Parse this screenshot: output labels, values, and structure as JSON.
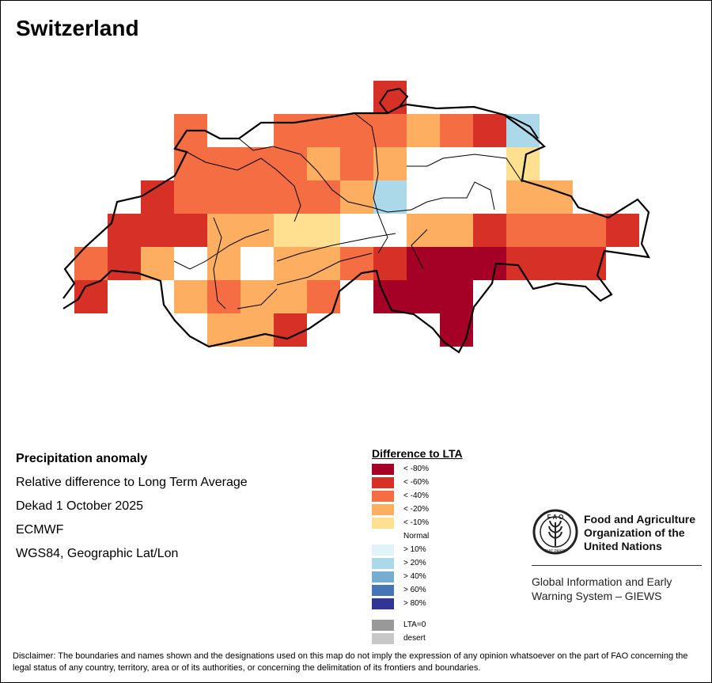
{
  "title": "Switzerland",
  "info": {
    "heading": "Precipitation anomaly",
    "line1": "Relative difference to Long Term Average",
    "line2": "Dekad 1 October 2025",
    "line3": "ECMWF",
    "line4": "WGS84, Geographic Lat/Lon"
  },
  "legend": {
    "title": "Difference to LTA",
    "items": [
      {
        "label": "< -80%",
        "color": "#a50026"
      },
      {
        "label": "< -60%",
        "color": "#d73027"
      },
      {
        "label": "< -40%",
        "color": "#f46d43"
      },
      {
        "label": "< -20%",
        "color": "#fdae61"
      },
      {
        "label": "< -10%",
        "color": "#fee090"
      },
      {
        "label": "Normal",
        "color": "#ffffff"
      },
      {
        "label": "> 10%",
        "color": "#e0f3f8"
      },
      {
        "label": "> 20%",
        "color": "#abd9e9"
      },
      {
        "label": "> 40%",
        "color": "#74add1"
      },
      {
        "label": "> 60%",
        "color": "#4575b4"
      },
      {
        "label": "> 80%",
        "color": "#313695"
      }
    ],
    "extra": [
      {
        "label": "LTA=0",
        "color": "#999999"
      },
      {
        "label": "desert",
        "color": "#c8c8c8"
      }
    ]
  },
  "map_grid": {
    "legend_codes": "0=<-80,1=<-60,2=<-40,3=<-20,4=<-10,5=normal,7=>20,-1=no data",
    "rows": [
      [
        -1,
        -1,
        -1,
        -1,
        -1,
        -1,
        -1,
        -1,
        -1,
        1,
        -1,
        -1,
        -1,
        -1,
        -1,
        -1,
        -1,
        -1
      ],
      [
        -1,
        -1,
        -1,
        2,
        5,
        -1,
        2,
        2,
        2,
        2,
        3,
        2,
        1,
        7,
        -1,
        -1,
        -1,
        -1
      ],
      [
        -1,
        -1,
        -1,
        2,
        2,
        2,
        2,
        3,
        2,
        3,
        5,
        5,
        5,
        4,
        -1,
        -1,
        -1,
        -1
      ],
      [
        -1,
        -1,
        1,
        2,
        2,
        2,
        2,
        2,
        3,
        7,
        5,
        5,
        5,
        3,
        3,
        -1,
        -1,
        -1
      ],
      [
        -1,
        1,
        1,
        1,
        3,
        3,
        4,
        4,
        5,
        5,
        3,
        3,
        1,
        2,
        2,
        2,
        1,
        -1
      ],
      [
        2,
        1,
        3,
        5,
        3,
        5,
        3,
        3,
        2,
        1,
        0,
        0,
        0,
        1,
        1,
        1,
        -1,
        -1
      ],
      [
        1,
        5,
        5,
        3,
        2,
        3,
        3,
        2,
        5,
        0,
        0,
        0,
        5,
        -1,
        -1,
        -1,
        -1,
        -1
      ],
      [
        -1,
        -1,
        -1,
        5,
        3,
        3,
        1,
        5,
        -1,
        5,
        5,
        0,
        -1,
        -1,
        -1,
        -1,
        -1,
        -1
      ]
    ]
  },
  "org": {
    "name_line1": "Food and Agriculture",
    "name_line2": "Organization of the",
    "name_line3": "United Nations",
    "logo_text": "FAO FIAT PANIS",
    "giews_line1": "Global Information and Early",
    "giews_line2": "Warning System – GIEWS"
  },
  "disclaimer": "Disclaimer: The boundaries and names shown and the designations used on this map do not imply the expression of any opinion whatsoever on the part of FAO concerning the legal status of any country, territory, area or of its authorities, or concerning the delimitation of its frontiers and boundaries."
}
